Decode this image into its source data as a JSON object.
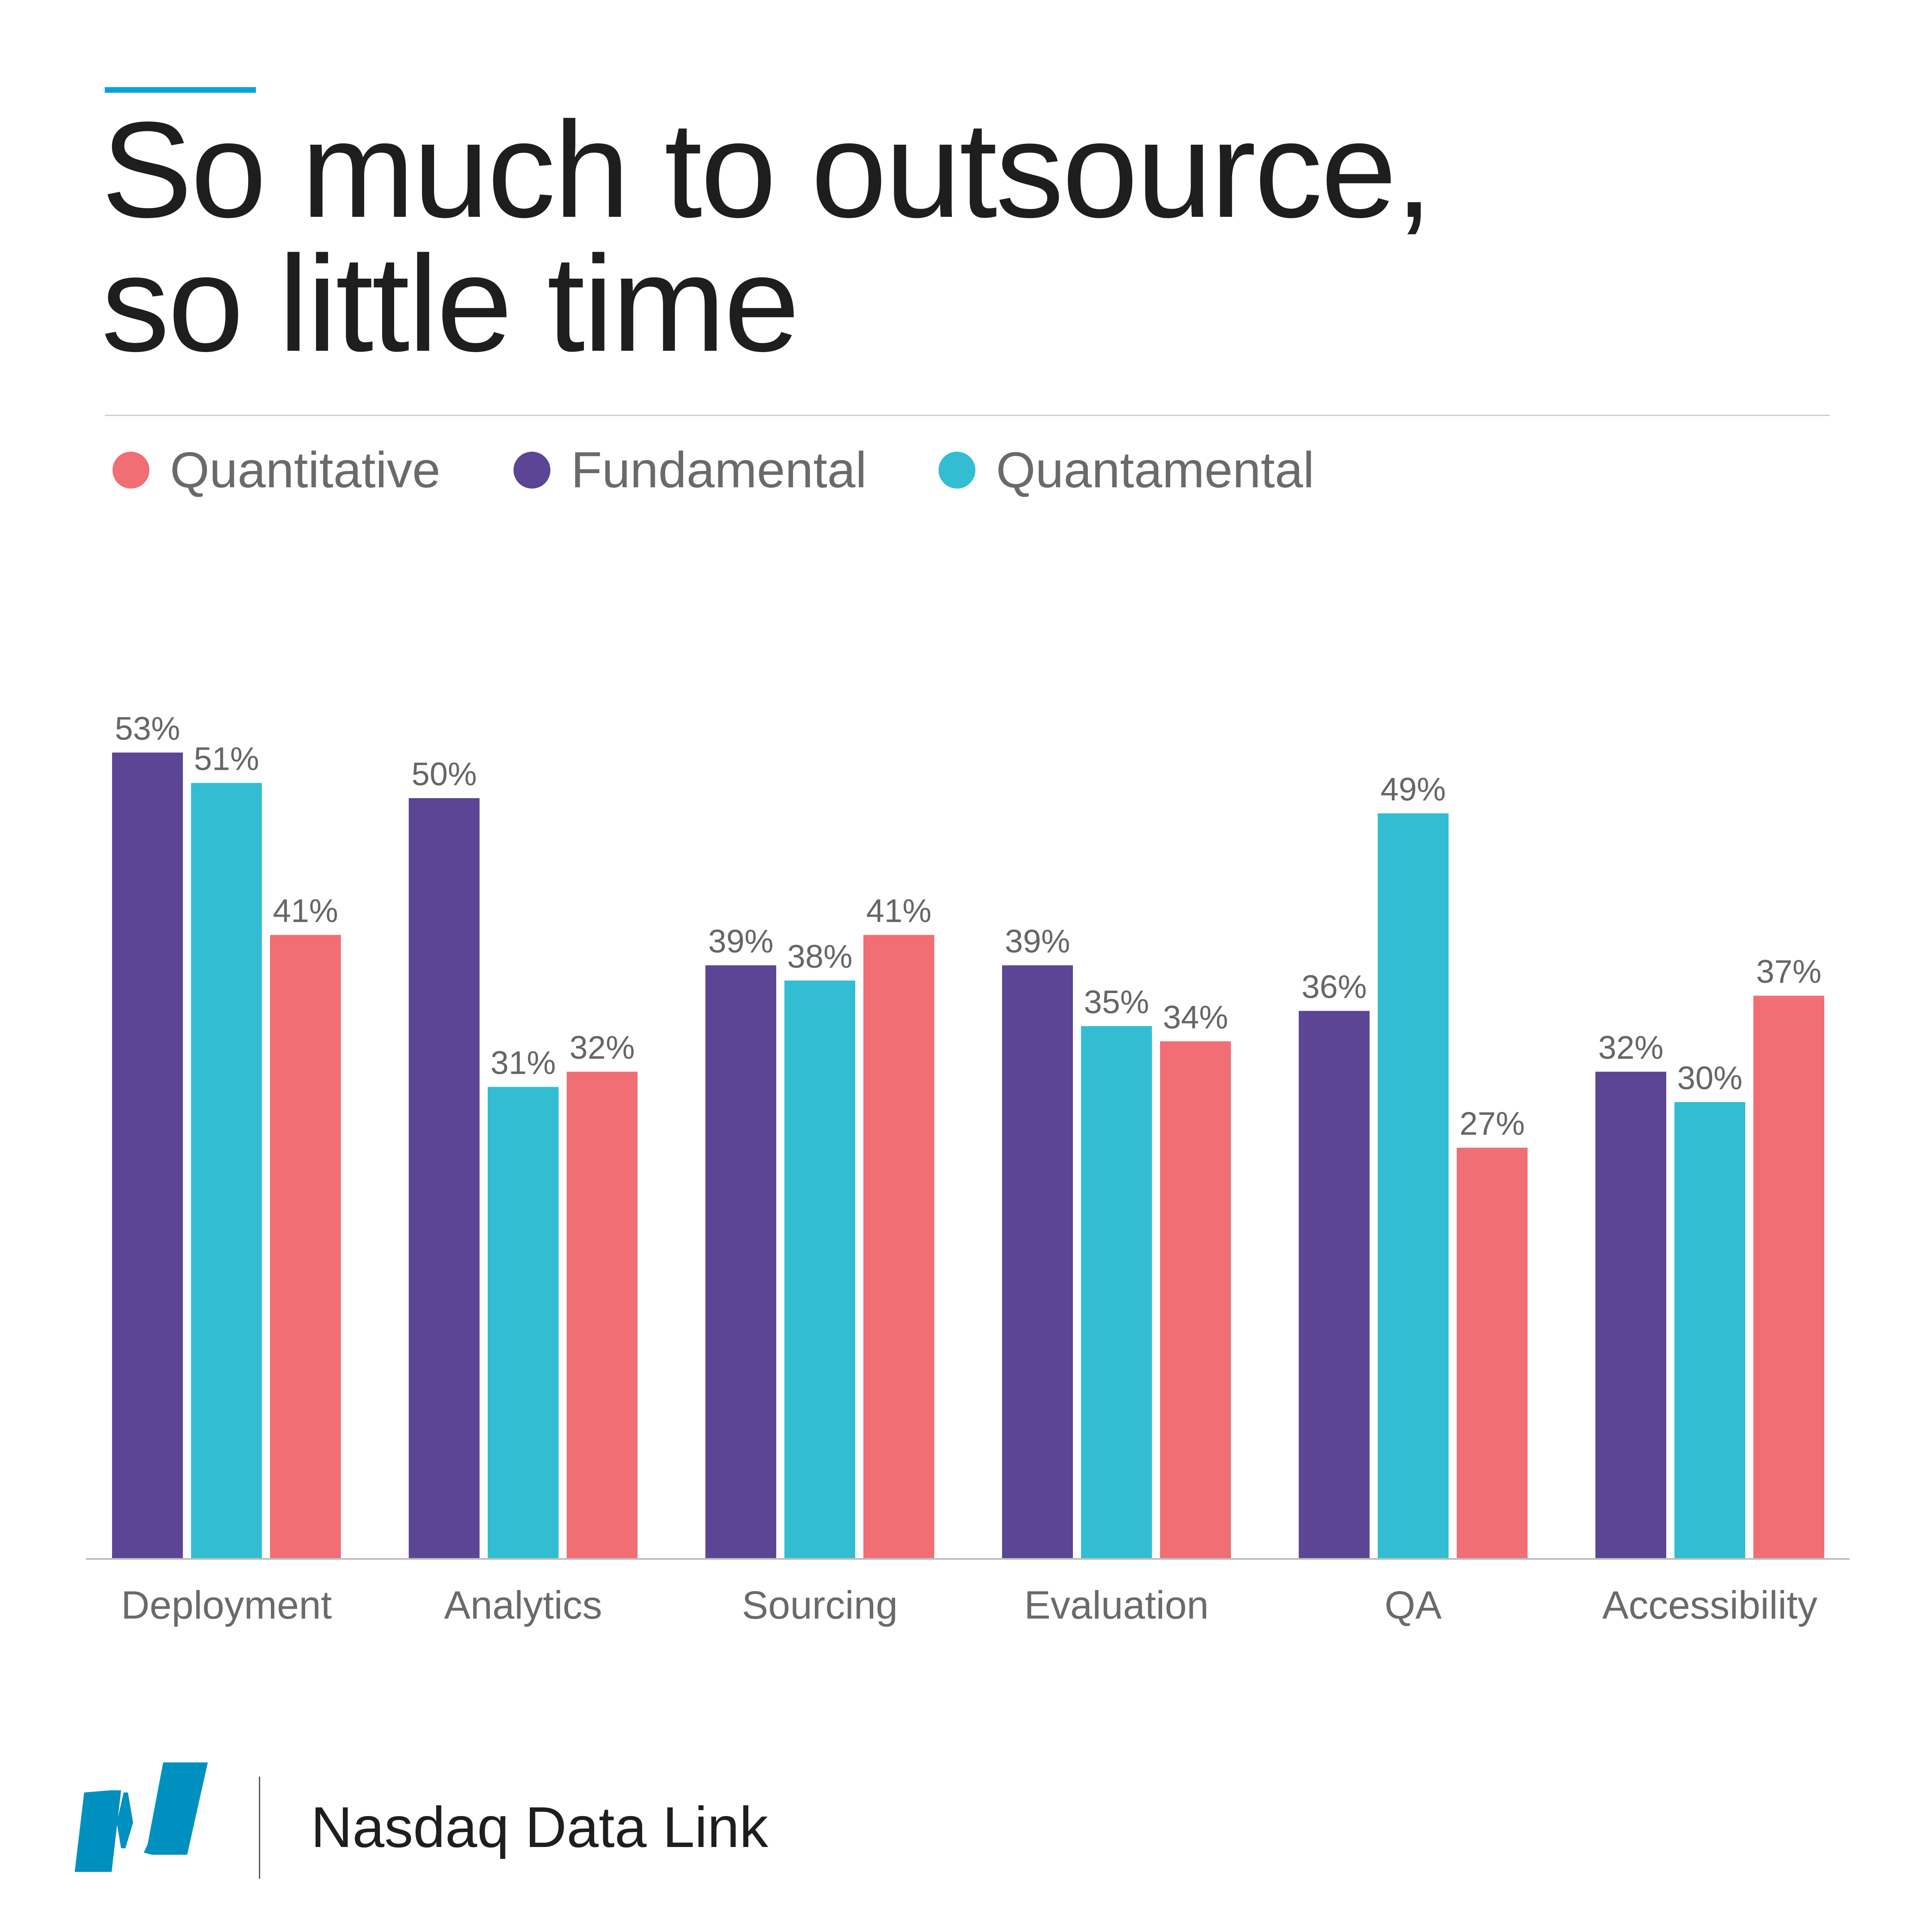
{
  "header": {
    "title_line1": "So much to outsource,",
    "title_line2": "so little time"
  },
  "legend": [
    {
      "label": "Quantitative",
      "color": "#f06e74"
    },
    {
      "label": "Fundamental",
      "color": "#5c4595"
    },
    {
      "label": "Quantamental",
      "color": "#33bdd3"
    }
  ],
  "footer": {
    "brand": "Nasdaq Data Link"
  },
  "colors": {
    "accent": "#00a3e0",
    "logo": "#0090c0"
  },
  "chart_data": {
    "type": "bar",
    "title": "So much to outsource, so little time",
    "categories": [
      "Deployment",
      "Analytics",
      "Sourcing",
      "Evaluation",
      "QA",
      "Accessibility"
    ],
    "series": [
      {
        "name": "Fundamental",
        "color": "#5c4595",
        "values": [
          53,
          50,
          39,
          39,
          36,
          32
        ]
      },
      {
        "name": "Quantamental",
        "color": "#33bdd3",
        "values": [
          51,
          31,
          38,
          35,
          49,
          30
        ]
      },
      {
        "name": "Quantitative",
        "color": "#f06e74",
        "values": [
          41,
          32,
          41,
          34,
          27,
          37
        ]
      }
    ],
    "value_suffix": "%",
    "ylim": [
      0,
      60
    ],
    "grid": false,
    "legend_position": "top-left",
    "xlabel": "",
    "ylabel": ""
  }
}
